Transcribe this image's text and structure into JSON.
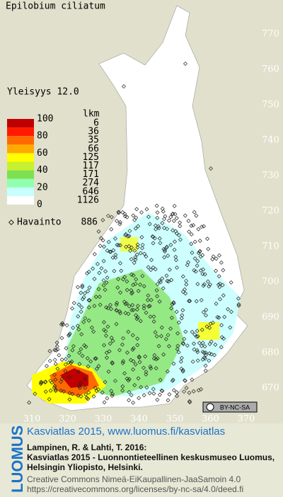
{
  "title": "Epilobium ciliatum",
  "frequency": "Yleisyys  12.0",
  "legend": {
    "count_header": "lkm",
    "scale_labels": [
      "100",
      "80",
      "60",
      "40",
      "20",
      "0"
    ],
    "bands": [
      {
        "count": 6,
        "color": "#c00000"
      },
      {
        "count": 36,
        "color": "#ff1a00"
      },
      {
        "count": 35,
        "color": "#ff6a00"
      },
      {
        "count": 66,
        "color": "#ffaa00"
      },
      {
        "count": 125,
        "color": "#ffff00"
      },
      {
        "count": 117,
        "color": "#c8f030"
      },
      {
        "count": 171,
        "color": "#7ee050"
      },
      {
        "count": 274,
        "color": "#90ffb0"
      },
      {
        "count": 646,
        "color": "#c8ffff"
      },
      {
        "count": 1126,
        "color": "#ffffff"
      }
    ],
    "observation_label": "Havainto",
    "observation_count": 886
  },
  "north_labels": [
    "770",
    "760",
    "750",
    "740",
    "730",
    "720",
    "710",
    "700",
    "690",
    "680",
    "670"
  ],
  "east_labels": [
    "310",
    "320",
    "330",
    "340",
    "350",
    "360",
    "370"
  ],
  "license_badge": "BY-NC-SA",
  "logo": "LUOMUS",
  "footer": {
    "headline": "Kasviatlas 2015, www.luomus.fi/kasviatlas",
    "citation": [
      "Lampinen, R. & Lahti, T. 2016:",
      "Kasviatlas 2015 - Luonnontieteellinen keskusmuseo Luomus,",
      "Helsingin Yliopisto, Helsinki."
    ],
    "license": [
      "Creative Commons Nimeä-EiKaupallinen-JaaSamoin 4.0",
      "https://creativecommons.org/licenses/by-nc-sa/4.0/deed.fi"
    ]
  }
}
